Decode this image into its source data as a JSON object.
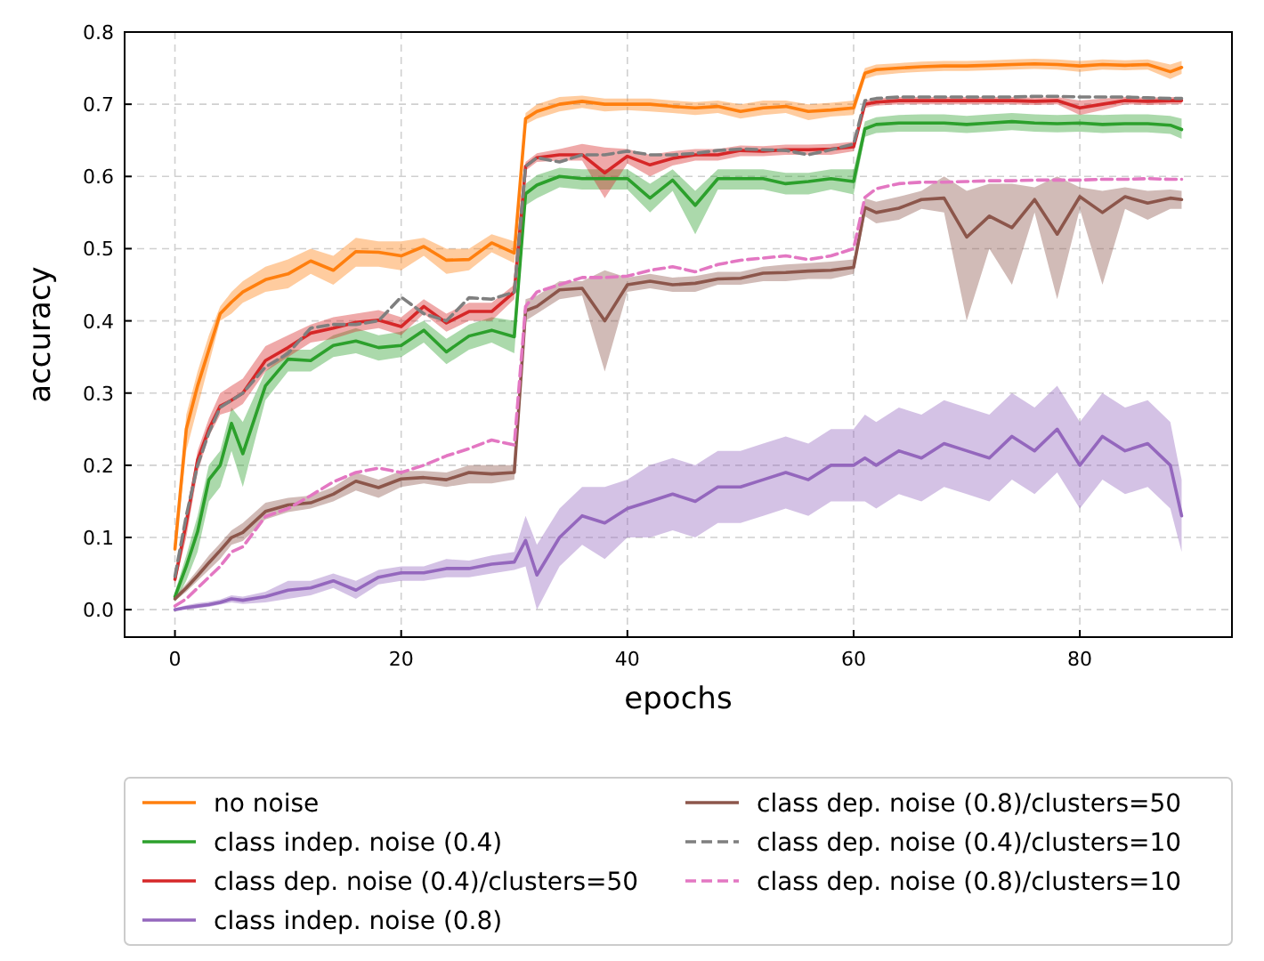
{
  "chart_data": {
    "type": "line",
    "xlabel": "epochs",
    "ylabel": "accuracy",
    "xlim": [
      -4.45,
      93.45
    ],
    "ylim": [
      -0.038,
      0.8
    ],
    "xticks": [
      0,
      20,
      40,
      60,
      80
    ],
    "yticks": [
      {
        "value": 0,
        "label": "0.0"
      },
      {
        "value": 0.1,
        "label": "0.1"
      },
      {
        "value": 0.2,
        "label": "0.2"
      },
      {
        "value": 0.3,
        "label": "0.3"
      },
      {
        "value": 0.4,
        "label": "0.4"
      },
      {
        "value": 0.5,
        "label": "0.5"
      },
      {
        "value": 0.6,
        "label": "0.6"
      },
      {
        "value": 0.7,
        "label": "0.7"
      },
      {
        "value": 0.8,
        "label": "0.8"
      }
    ],
    "grid": true,
    "legend": "bottom",
    "line_style": "solid",
    "x": [
      0,
      1,
      2,
      3,
      4,
      5,
      6,
      8,
      10,
      12,
      14,
      16,
      18,
      20,
      22,
      24,
      26,
      28,
      30,
      31,
      32,
      34,
      36,
      38,
      40,
      42,
      44,
      46,
      48,
      50,
      52,
      54,
      56,
      58,
      60,
      61,
      62,
      64,
      66,
      68,
      70,
      72,
      74,
      76,
      78,
      80,
      82,
      84,
      86,
      88,
      89
    ],
    "series": [
      {
        "name": "no noise",
        "color": "#ff7f0e",
        "values": [
          0.084,
          0.25,
          0.31,
          0.36,
          0.41,
          0.426,
          0.44,
          0.457,
          0.465,
          0.483,
          0.47,
          0.496,
          0.495,
          0.49,
          0.503,
          0.484,
          0.485,
          0.508,
          0.494,
          0.68,
          0.69,
          0.7,
          0.704,
          0.7,
          0.7,
          0.7,
          0.697,
          0.695,
          0.697,
          0.69,
          0.695,
          0.697,
          0.69,
          0.692,
          0.695,
          0.743,
          0.748,
          0.75,
          0.752,
          0.753,
          0.753,
          0.754,
          0.755,
          0.756,
          0.755,
          0.753,
          0.755,
          0.754,
          0.755,
          0.745,
          0.751
        ],
        "lower": [
          0.075,
          0.22,
          0.28,
          0.34,
          0.4,
          0.41,
          0.425,
          0.44,
          0.445,
          0.465,
          0.45,
          0.475,
          0.475,
          0.47,
          0.49,
          0.465,
          0.47,
          0.495,
          0.48,
          0.672,
          0.68,
          0.69,
          0.695,
          0.69,
          0.692,
          0.69,
          0.688,
          0.685,
          0.688,
          0.68,
          0.685,
          0.688,
          0.678,
          0.683,
          0.685,
          0.735,
          0.74,
          0.743,
          0.745,
          0.746,
          0.746,
          0.747,
          0.748,
          0.749,
          0.748,
          0.745,
          0.748,
          0.747,
          0.748,
          0.735,
          0.742
        ],
        "upper": [
          0.09,
          0.27,
          0.33,
          0.38,
          0.42,
          0.44,
          0.455,
          0.475,
          0.485,
          0.5,
          0.49,
          0.515,
          0.51,
          0.51,
          0.515,
          0.5,
          0.5,
          0.52,
          0.51,
          0.688,
          0.7,
          0.71,
          0.712,
          0.708,
          0.708,
          0.708,
          0.705,
          0.703,
          0.705,
          0.7,
          0.705,
          0.705,
          0.7,
          0.702,
          0.705,
          0.75,
          0.755,
          0.757,
          0.759,
          0.76,
          0.76,
          0.761,
          0.762,
          0.763,
          0.762,
          0.76,
          0.762,
          0.761,
          0.762,
          0.755,
          0.76
        ]
      },
      {
        "name": "class indep. noise (0.4)",
        "color": "#2ca02c",
        "values": [
          0.018,
          0.06,
          0.108,
          0.18,
          0.2,
          0.258,
          0.216,
          0.31,
          0.347,
          0.345,
          0.366,
          0.372,
          0.363,
          0.366,
          0.387,
          0.357,
          0.379,
          0.387,
          0.378,
          0.576,
          0.588,
          0.6,
          0.597,
          0.597,
          0.597,
          0.57,
          0.595,
          0.56,
          0.597,
          0.597,
          0.597,
          0.59,
          0.593,
          0.597,
          0.593,
          0.666,
          0.672,
          0.674,
          0.674,
          0.674,
          0.672,
          0.674,
          0.676,
          0.674,
          0.673,
          0.674,
          0.672,
          0.673,
          0.673,
          0.671,
          0.665
        ],
        "lower": [
          0.01,
          0.04,
          0.08,
          0.15,
          0.17,
          0.22,
          0.17,
          0.29,
          0.33,
          0.33,
          0.35,
          0.355,
          0.345,
          0.35,
          0.37,
          0.34,
          0.36,
          0.37,
          0.355,
          0.56,
          0.57,
          0.585,
          0.582,
          0.582,
          0.582,
          0.55,
          0.58,
          0.52,
          0.582,
          0.582,
          0.582,
          0.575,
          0.575,
          0.582,
          0.575,
          0.655,
          0.66,
          0.662,
          0.662,
          0.662,
          0.66,
          0.662,
          0.664,
          0.662,
          0.661,
          0.662,
          0.66,
          0.661,
          0.661,
          0.659,
          0.652
        ],
        "upper": [
          0.025,
          0.075,
          0.13,
          0.2,
          0.22,
          0.28,
          0.26,
          0.33,
          0.36,
          0.36,
          0.38,
          0.39,
          0.38,
          0.385,
          0.4,
          0.375,
          0.395,
          0.405,
          0.4,
          0.59,
          0.602,
          0.612,
          0.61,
          0.61,
          0.61,
          0.59,
          0.61,
          0.58,
          0.61,
          0.61,
          0.61,
          0.605,
          0.605,
          0.61,
          0.61,
          0.676,
          0.682,
          0.685,
          0.686,
          0.686,
          0.684,
          0.686,
          0.688,
          0.686,
          0.685,
          0.686,
          0.685,
          0.686,
          0.686,
          0.684,
          0.68
        ]
      },
      {
        "name": "class dep. noise (0.4)/clusters=50",
        "color": "#d62728",
        "values": [
          0.042,
          0.12,
          0.207,
          0.25,
          0.282,
          0.29,
          0.3,
          0.345,
          0.363,
          0.383,
          0.39,
          0.398,
          0.401,
          0.392,
          0.42,
          0.397,
          0.413,
          0.413,
          0.44,
          0.614,
          0.626,
          0.63,
          0.63,
          0.605,
          0.628,
          0.616,
          0.625,
          0.63,
          0.63,
          0.636,
          0.635,
          0.637,
          0.637,
          0.638,
          0.641,
          0.7,
          0.703,
          0.705,
          0.705,
          0.705,
          0.705,
          0.705,
          0.705,
          0.704,
          0.705,
          0.695,
          0.7,
          0.705,
          0.704,
          0.705,
          0.705
        ],
        "lower": [
          0.035,
          0.1,
          0.19,
          0.24,
          0.27,
          0.275,
          0.285,
          0.33,
          0.35,
          0.37,
          0.375,
          0.385,
          0.39,
          0.38,
          0.41,
          0.385,
          0.4,
          0.4,
          0.43,
          0.608,
          0.62,
          0.622,
          0.622,
          0.57,
          0.618,
          0.6,
          0.615,
          0.622,
          0.622,
          0.628,
          0.628,
          0.63,
          0.63,
          0.63,
          0.635,
          0.695,
          0.698,
          0.7,
          0.7,
          0.7,
          0.7,
          0.7,
          0.7,
          0.699,
          0.7,
          0.685,
          0.692,
          0.7,
          0.699,
          0.7,
          0.7
        ],
        "upper": [
          0.05,
          0.135,
          0.22,
          0.265,
          0.3,
          0.31,
          0.32,
          0.365,
          0.38,
          0.395,
          0.405,
          0.41,
          0.415,
          0.405,
          0.43,
          0.41,
          0.425,
          0.425,
          0.45,
          0.62,
          0.632,
          0.638,
          0.645,
          0.64,
          0.638,
          0.63,
          0.635,
          0.638,
          0.638,
          0.643,
          0.642,
          0.644,
          0.644,
          0.645,
          0.648,
          0.705,
          0.708,
          0.71,
          0.71,
          0.71,
          0.71,
          0.71,
          0.71,
          0.709,
          0.71,
          0.705,
          0.708,
          0.71,
          0.709,
          0.71,
          0.71
        ]
      },
      {
        "name": "class indep. noise (0.8)",
        "color": "#9467bd",
        "values": [
          0,
          0.003,
          0.005,
          0.007,
          0.01,
          0.015,
          0.013,
          0.018,
          0.027,
          0.03,
          0.04,
          0.027,
          0.045,
          0.051,
          0.051,
          0.057,
          0.057,
          0.063,
          0.066,
          0.096,
          0.048,
          0.1,
          0.13,
          0.12,
          0.14,
          0.15,
          0.16,
          0.15,
          0.17,
          0.17,
          0.18,
          0.19,
          0.18,
          0.2,
          0.2,
          0.21,
          0.2,
          0.22,
          0.21,
          0.23,
          0.22,
          0.21,
          0.24,
          0.22,
          0.25,
          0.2,
          0.24,
          0.22,
          0.23,
          0.2,
          0.13
        ],
        "lower": [
          0,
          0,
          0.002,
          0.004,
          0.007,
          0.01,
          0.008,
          0.01,
          0.015,
          0.02,
          0.03,
          0.015,
          0.035,
          0.04,
          0.04,
          0.045,
          0.045,
          0.05,
          0.055,
          0.06,
          0,
          0.06,
          0.09,
          0.07,
          0.1,
          0.1,
          0.11,
          0.1,
          0.12,
          0.12,
          0.13,
          0.14,
          0.13,
          0.15,
          0.15,
          0.15,
          0.14,
          0.16,
          0.15,
          0.17,
          0.16,
          0.15,
          0.18,
          0.16,
          0.19,
          0.14,
          0.18,
          0.16,
          0.17,
          0.14,
          0.08
        ],
        "upper": [
          0.002,
          0.006,
          0.009,
          0.011,
          0.014,
          0.02,
          0.018,
          0.025,
          0.04,
          0.04,
          0.05,
          0.04,
          0.055,
          0.06,
          0.06,
          0.07,
          0.068,
          0.075,
          0.08,
          0.13,
          0.09,
          0.14,
          0.17,
          0.17,
          0.18,
          0.2,
          0.21,
          0.2,
          0.22,
          0.22,
          0.23,
          0.24,
          0.23,
          0.25,
          0.25,
          0.27,
          0.26,
          0.28,
          0.27,
          0.29,
          0.28,
          0.27,
          0.3,
          0.28,
          0.31,
          0.26,
          0.3,
          0.28,
          0.29,
          0.26,
          0.18
        ]
      },
      {
        "name": "class dep. noise (0.8)/clusters=50",
        "color": "#8c564b",
        "values": [
          0.015,
          0.03,
          0.047,
          0.065,
          0.082,
          0.1,
          0.107,
          0.136,
          0.145,
          0.148,
          0.16,
          0.178,
          0.169,
          0.181,
          0.183,
          0.18,
          0.19,
          0.188,
          0.19,
          0.414,
          0.42,
          0.443,
          0.445,
          0.4,
          0.45,
          0.455,
          0.45,
          0.452,
          0.458,
          0.459,
          0.466,
          0.467,
          0.469,
          0.47,
          0.474,
          0.557,
          0.55,
          0.556,
          0.568,
          0.57,
          0.516,
          0.545,
          0.529,
          0.568,
          0.52,
          0.572,
          0.55,
          0.572,
          0.563,
          0.57,
          0.568
        ],
        "lower": [
          0.012,
          0.025,
          0.04,
          0.055,
          0.07,
          0.09,
          0.095,
          0.125,
          0.135,
          0.14,
          0.15,
          0.165,
          0.155,
          0.17,
          0.175,
          0.17,
          0.175,
          0.175,
          0.18,
          0.4,
          0.41,
          0.43,
          0.435,
          0.33,
          0.44,
          0.445,
          0.44,
          0.44,
          0.45,
          0.45,
          0.455,
          0.455,
          0.458,
          0.458,
          0.465,
          0.545,
          0.535,
          0.54,
          0.555,
          0.55,
          0.4,
          0.5,
          0.45,
          0.55,
          0.43,
          0.555,
          0.45,
          0.555,
          0.54,
          0.555,
          0.555
        ],
        "upper": [
          0.018,
          0.036,
          0.055,
          0.075,
          0.092,
          0.11,
          0.12,
          0.148,
          0.155,
          0.158,
          0.17,
          0.19,
          0.18,
          0.192,
          0.192,
          0.19,
          0.2,
          0.2,
          0.2,
          0.43,
          0.435,
          0.455,
          0.455,
          0.47,
          0.46,
          0.465,
          0.46,
          0.462,
          0.468,
          0.468,
          0.475,
          0.478,
          0.48,
          0.482,
          0.485,
          0.57,
          0.565,
          0.572,
          0.58,
          0.6,
          0.58,
          0.59,
          0.59,
          0.585,
          0.6,
          0.585,
          0.58,
          0.585,
          0.58,
          0.582,
          0.58
        ]
      },
      {
        "name": "class dep. noise (0.4)/clusters=10",
        "color": "#7f7f7f",
        "line_style": "dashed",
        "values": [
          0.046,
          0.13,
          0.2,
          0.245,
          0.28,
          0.29,
          0.3,
          0.336,
          0.355,
          0.39,
          0.395,
          0.395,
          0.4,
          0.433,
          0.41,
          0.4,
          0.432,
          0.43,
          0.44,
          0.614,
          0.626,
          0.62,
          0.63,
          0.63,
          0.635,
          0.63,
          0.63,
          0.632,
          0.636,
          0.638,
          0.637,
          0.636,
          0.63,
          0.637,
          0.645,
          0.705,
          0.708,
          0.71,
          0.71,
          0.71,
          0.71,
          0.71,
          0.71,
          0.711,
          0.711,
          0.71,
          0.71,
          0.71,
          0.709,
          0.708,
          0.708
        ]
      },
      {
        "name": "class dep. noise (0.8)/clusters=10",
        "color": "#e377c2",
        "line_style": "dashed",
        "values": [
          0.005,
          0.015,
          0.03,
          0.045,
          0.06,
          0.08,
          0.087,
          0.129,
          0.14,
          0.158,
          0.177,
          0.19,
          0.196,
          0.19,
          0.2,
          0.213,
          0.223,
          0.235,
          0.228,
          0.42,
          0.44,
          0.45,
          0.46,
          0.46,
          0.462,
          0.47,
          0.475,
          0.468,
          0.478,
          0.484,
          0.487,
          0.49,
          0.485,
          0.49,
          0.5,
          0.571,
          0.583,
          0.59,
          0.592,
          0.592,
          0.593,
          0.594,
          0.594,
          0.595,
          0.595,
          0.595,
          0.596,
          0.596,
          0.597,
          0.596,
          0.596
        ]
      }
    ]
  }
}
